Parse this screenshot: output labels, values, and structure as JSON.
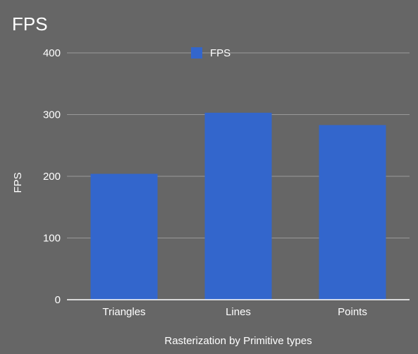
{
  "chart_data": {
    "type": "bar",
    "title": "FPS",
    "xlabel": "Rasterization by Primitive types",
    "ylabel": "FPS",
    "categories": [
      "Triangles",
      "Lines",
      "Points"
    ],
    "series": [
      {
        "name": "FPS",
        "values": [
          204,
          303,
          283
        ],
        "color": "#3366cc"
      }
    ],
    "ylim": [
      0,
      400
    ],
    "yticks": [
      0,
      100,
      200,
      300,
      400
    ],
    "grid": true,
    "legend_position": "top",
    "colors": {
      "background": "#666666",
      "text": "#ffffff",
      "grid": "#999999",
      "axis": "#ffffff",
      "bar": "#3366cc"
    }
  }
}
